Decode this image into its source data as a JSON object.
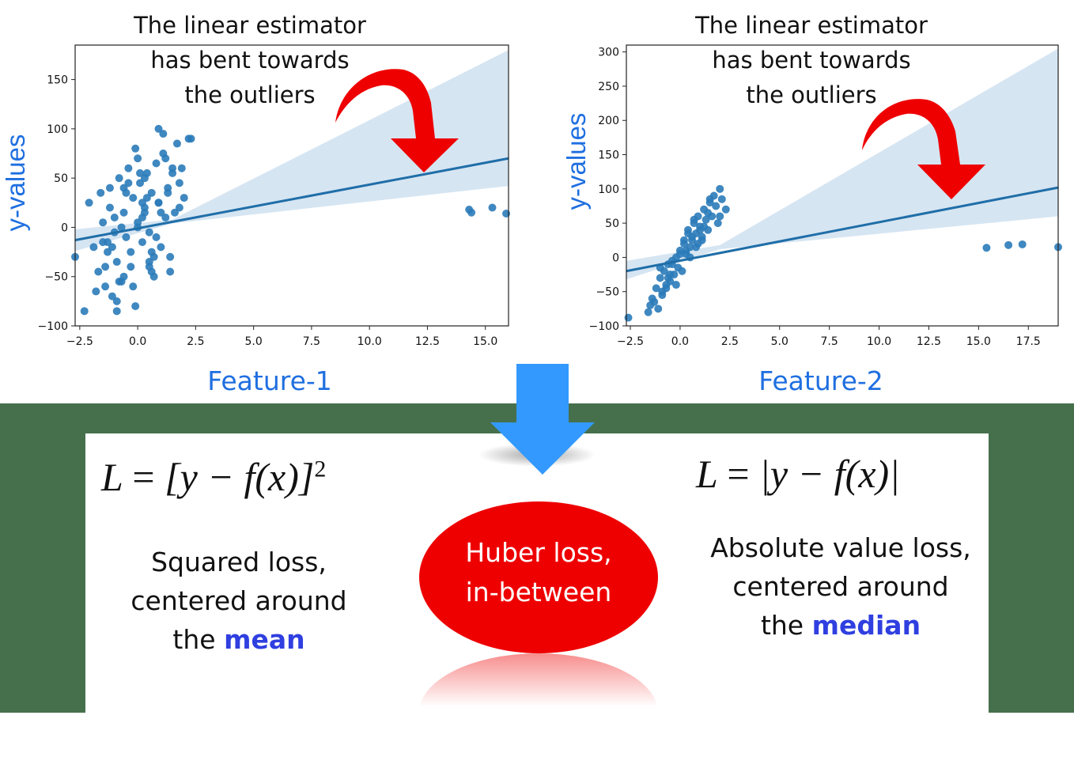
{
  "chart_data": [
    {
      "type": "scatter",
      "name": "feature-1",
      "title": "",
      "xlabel": "Feature-1",
      "ylabel": "y-values",
      "xlim": [
        -2.7,
        16.0
      ],
      "ylim": [
        -100,
        185
      ],
      "xticks": [
        "−2.5",
        "0.0",
        "2.5",
        "5.0",
        "7.5",
        "10.0",
        "12.5",
        "15.0"
      ],
      "xtick_values": [
        -2.5,
        0,
        2.5,
        5,
        7.5,
        10,
        12.5,
        15
      ],
      "yticks": [
        "−100",
        "−50",
        "0",
        "50",
        "100",
        "150"
      ],
      "ytick_values": [
        -100,
        -50,
        0,
        50,
        100,
        150
      ],
      "regression_line": {
        "x": [
          -2.7,
          16.0
        ],
        "y": [
          -13,
          70
        ]
      },
      "confidence_band": {
        "x": [
          -2.7,
          1.5,
          16.0
        ],
        "upper": [
          -2,
          8,
          180
        ],
        "lower": [
          -24,
          4,
          42
        ]
      },
      "points": {
        "x": [
          -2.7,
          -2.3,
          -2.1,
          -1.9,
          -1.7,
          -1.6,
          -1.5,
          -1.4,
          -1.3,
          -1.2,
          -1.1,
          -1.0,
          -0.9,
          -0.8,
          -0.7,
          -0.6,
          -0.5,
          -0.4,
          -0.3,
          -0.2,
          -0.1,
          0.0,
          0.1,
          0.2,
          0.3,
          0.4,
          0.5,
          0.6,
          0.7,
          0.8,
          0.9,
          1.0,
          1.1,
          1.2,
          1.3,
          1.4,
          1.5,
          1.6,
          1.7,
          1.8,
          2.0,
          2.2,
          -1.8,
          -1.5,
          -1.2,
          -0.9,
          -0.6,
          -0.3,
          0.0,
          0.3,
          0.6,
          0.9,
          1.2,
          -1.0,
          -0.5,
          0.5,
          1.0,
          1.5,
          -0.8,
          0.2,
          0.8,
          1.8,
          -1.4,
          -0.2,
          0.4,
          1.4,
          -0.7,
          0.0,
          0.7,
          1.1,
          -1.1,
          -0.4,
          0.3,
          0.9,
          -0.9,
          0.1,
          0.6,
          1.3,
          2.3,
          1.9,
          -0.6,
          0.2,
          -1.3,
          0.5,
          -0.1,
          14.3,
          14.4,
          15.3,
          15.9
        ],
        "y": [
          -30,
          -85,
          25,
          -20,
          -45,
          35,
          5,
          -60,
          -25,
          40,
          -70,
          10,
          -35,
          50,
          -55,
          15,
          -10,
          60,
          -40,
          30,
          -80,
          0,
          45,
          -15,
          20,
          55,
          -5,
          35,
          -50,
          65,
          25,
          -20,
          75,
          10,
          40,
          -30,
          55,
          15,
          85,
          45,
          30,
          90,
          -65,
          -15,
          20,
          -75,
          40,
          -25,
          5,
          50,
          -45,
          25,
          70,
          -5,
          35,
          -35,
          15,
          60,
          -55,
          10,
          -10,
          20,
          -40,
          -60,
          30,
          -45,
          0,
          70,
          -30,
          95,
          -20,
          45,
          15,
          100,
          -85,
          55,
          -25,
          35,
          90,
          60,
          -50,
          25,
          -15,
          -40,
          80,
          18,
          15,
          20,
          14
        ]
      }
    },
    {
      "type": "scatter",
      "name": "feature-2",
      "title": "",
      "xlabel": "Feature-2",
      "ylabel": "y-values",
      "xlim": [
        -2.7,
        19.0
      ],
      "ylim": [
        -100,
        310
      ],
      "xticks": [
        "−2.5",
        "0.0",
        "2.5",
        "5.0",
        "7.5",
        "10.0",
        "12.5",
        "15.0",
        "17.5"
      ],
      "xtick_values": [
        -2.5,
        0,
        2.5,
        5,
        7.5,
        10,
        12.5,
        15,
        17.5
      ],
      "yticks": [
        "−100",
        "−50",
        "0",
        "50",
        "100",
        "150",
        "200",
        "250",
        "300"
      ],
      "ytick_values": [
        -100,
        -50,
        0,
        50,
        100,
        150,
        200,
        250,
        300
      ],
      "regression_line": {
        "x": [
          -2.7,
          19.0
        ],
        "y": [
          -20,
          102
        ]
      },
      "confidence_band": {
        "x": [
          -2.7,
          2.0,
          19.0
        ],
        "upper": [
          -5,
          18,
          305
        ],
        "lower": [
          -32,
          12,
          60
        ]
      },
      "points": {
        "x": [
          -2.6,
          -1.6,
          -1.4,
          -1.2,
          -1.1,
          -1.0,
          -0.9,
          -0.8,
          -0.7,
          -0.6,
          -0.5,
          -0.4,
          -0.3,
          -0.2,
          -0.1,
          0.0,
          0.1,
          0.2,
          0.3,
          0.4,
          0.5,
          0.6,
          0.7,
          0.8,
          0.9,
          1.0,
          1.1,
          1.2,
          1.3,
          1.4,
          1.5,
          1.6,
          1.7,
          1.8,
          1.9,
          2.0,
          2.1,
          2.3,
          -1.3,
          -0.9,
          -0.5,
          -0.2,
          0.2,
          0.5,
          0.8,
          1.1,
          1.4,
          -1.0,
          -0.6,
          0.0,
          0.4,
          0.9,
          1.2,
          -0.7,
          0.3,
          0.7,
          1.5,
          -0.4,
          0.6,
          1.0,
          2.0,
          -1.5,
          15.4,
          16.5,
          17.2,
          19.0
        ],
        "y": [
          -88,
          -80,
          -60,
          -45,
          -75,
          -30,
          -55,
          -20,
          -40,
          -10,
          -35,
          -5,
          -25,
          0,
          -15,
          10,
          -20,
          25,
          5,
          40,
          15,
          30,
          50,
          35,
          60,
          45,
          25,
          70,
          55,
          40,
          80,
          60,
          90,
          75,
          50,
          100,
          85,
          70,
          -65,
          -50,
          -25,
          -40,
          20,
          0,
          15,
          30,
          65,
          -15,
          -30,
          5,
          35,
          20,
          45,
          -45,
          10,
          55,
          85,
          -10,
          25,
          40,
          60,
          -70,
          14,
          18,
          19,
          15
        ]
      }
    }
  ],
  "annotations": {
    "left": [
      "The linear estimator",
      "has bent towards",
      "the outliers"
    ],
    "right": [
      "The linear estimator",
      "has bent towards",
      "the outliers"
    ]
  },
  "formulas": {
    "squared": {
      "lhs": "L",
      "eq": "=",
      "body": "[y − f(x)]",
      "sup": "2"
    },
    "absolute": {
      "lhs": "L",
      "eq": "=",
      "body": "|y − f(x)|"
    }
  },
  "descriptions": {
    "squared": {
      "line1": "Squared loss,",
      "line2": "centered around",
      "line3_prefix": "the ",
      "line3_highlight": "mean"
    },
    "huber": {
      "line1": "Huber loss,",
      "line2": "in-between"
    },
    "absolute": {
      "line1": "Absolute value loss,",
      "line2": "centered around",
      "line3_prefix": "the ",
      "line3_highlight": "median"
    }
  },
  "colors": {
    "points": "#2b7bb9",
    "line": "#1f6ea8",
    "band": "#c8dcee",
    "arrow_red": "#ee0000",
    "arrow_blue": "#3399ff",
    "label_blue": "#1f6fe0",
    "background_green": "#46704c",
    "highlight": "#2f3fe0"
  }
}
